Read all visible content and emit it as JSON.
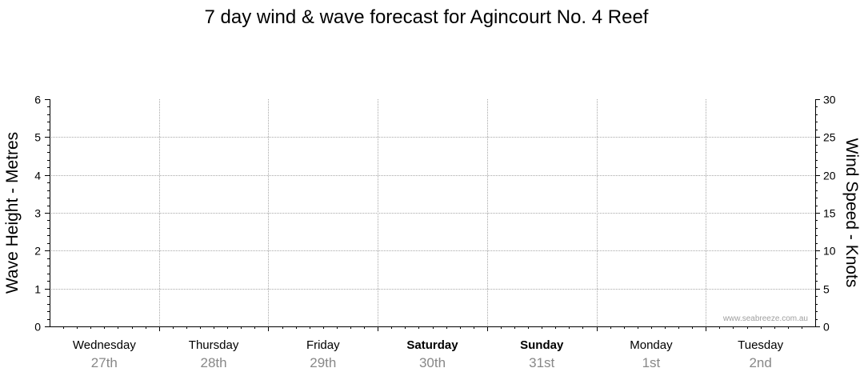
{
  "chart_data": {
    "type": "line",
    "title": "7 day wind & wave forecast for Agincourt No. 4 Reef",
    "ylabel_left": "Wave Height - Metres",
    "ylabel_right": "Wind Speed - Knots",
    "ylim_left": [
      0,
      6
    ],
    "ylim_right": [
      0,
      30
    ],
    "yticks_left": [
      "0",
      "1",
      "2",
      "3",
      "4",
      "5",
      "6"
    ],
    "yticks_right": [
      "0",
      "5",
      "10",
      "15",
      "20",
      "25",
      "30"
    ],
    "grid": true,
    "days": [
      {
        "name": "Wednesday",
        "date": "27th",
        "bold": false
      },
      {
        "name": "Thursday",
        "date": "28th",
        "bold": false
      },
      {
        "name": "Friday",
        "date": "29th",
        "bold": false
      },
      {
        "name": "Saturday",
        "date": "30th",
        "bold": true
      },
      {
        "name": "Sunday",
        "date": "31st",
        "bold": true
      },
      {
        "name": "Monday",
        "date": "1st",
        "bold": false
      },
      {
        "name": "Tuesday",
        "date": "2nd",
        "bold": false
      }
    ],
    "series": []
  },
  "watermark": "www.seabreeze.com.au"
}
